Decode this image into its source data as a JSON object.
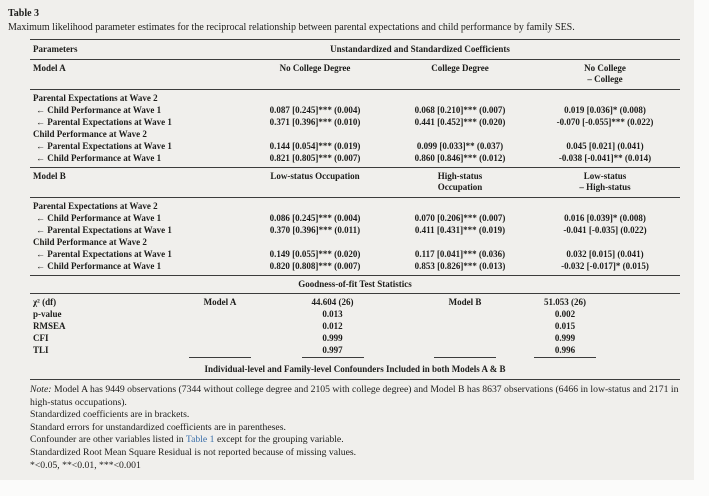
{
  "caption": {
    "label": "Table 3",
    "text": "Maximum likelihood parameter estimates for the reciprocal relationship between parental expectations and child performance by family SES."
  },
  "header": {
    "parameters": "Parameters",
    "coefficients": "Unstandardized and Standardized Coefficients"
  },
  "model_a": {
    "label": "Model A",
    "columns": [
      "No College Degree",
      "College Degree",
      "No College\n– College"
    ],
    "sections": [
      {
        "title": "Parental Expectations at Wave 2",
        "rows": [
          {
            "label": "← Child Performance at Wave 1",
            "values": [
              "0.087 [0.245]*** (0.004)",
              "0.068 [0.210]*** (0.007)",
              "0.019 [0.036]* (0.008)"
            ]
          },
          {
            "label": "← Parental Expectations at Wave 1",
            "values": [
              "0.371 [0.396]*** (0.010)",
              "0.441 [0.452]*** (0.020)",
              "-0.070 [-0.055]*** (0.022)"
            ]
          }
        ]
      },
      {
        "title": "Child Performance at Wave 2",
        "rows": [
          {
            "label": "← Parental Expectations at Wave 1",
            "values": [
              "0.144 [0.054]*** (0.019)",
              "0.099 [0.033]** (0.037)",
              "0.045 [0.021] (0.041)"
            ]
          },
          {
            "label": "← Child Performance at Wave 1",
            "values": [
              "0.821 [0.805]*** (0.007)",
              "0.860 [0.846]*** (0.012)",
              "-0.038 [-0.041]** (0.014)"
            ]
          }
        ]
      }
    ]
  },
  "model_b": {
    "label": "Model B",
    "columns": [
      "Low-status Occupation",
      "High-status\nOccupation",
      "Low-status\n– High-status"
    ],
    "sections": [
      {
        "title": "Parental Expectations at Wave 2",
        "rows": [
          {
            "label": "← Child Performance at Wave 1",
            "values": [
              "0.086 [0.245]*** (0.004)",
              "0.070 [0.206]*** (0.007)",
              "0.016 [0.039]* (0.008)"
            ]
          },
          {
            "label": "← Parental Expectations at Wave 1",
            "values": [
              "0.370 [0.396]*** (0.011)",
              "0.411 [0.431]*** (0.019)",
              "-0.041 [-0.035] (0.022)"
            ]
          }
        ]
      },
      {
        "title": "Child Performance at Wave 2",
        "rows": [
          {
            "label": "← Parental Expectations at Wave 1",
            "values": [
              "0.149 [0.055]*** (0.020)",
              "0.117 [0.041]*** (0.036)",
              "0.032 [0.015] (0.041)"
            ]
          },
          {
            "label": "← Child Performance at Wave 1",
            "values": [
              "0.820 [0.808]*** (0.007)",
              "0.853 [0.826]*** (0.013)",
              "-0.032 [-0.017]* (0.015)"
            ]
          }
        ]
      }
    ]
  },
  "gof": {
    "title": "Goodness-of-fit Test Statistics",
    "model_a_label": "Model A",
    "model_b_label": "Model B",
    "rows": [
      {
        "label": "χ² (df)",
        "a": "44.604 (26)",
        "b": "51.053 (26)"
      },
      {
        "label": "p-value",
        "a": "0.013",
        "b": "0.002"
      },
      {
        "label": "RMSEA",
        "a": "0.012",
        "b": "0.015"
      },
      {
        "label": "CFI",
        "a": "0.999",
        "b": "0.999"
      },
      {
        "label": "TLI",
        "a": "0.997",
        "b": "0.996"
      }
    ]
  },
  "confounders_row": "Individual-level and Family-level Confounders Included in both Models A & B",
  "notes": {
    "note_label": "Note:",
    "note1": " Model A has 9449 observations (7344 without college degree and 2105 with college degree) and Model B has 8637 observations (6466 in low-status and 2171 in high-status occupations).",
    "note2": "Standardized coefficients are in brackets.",
    "note3": "Standard errors for unstandardized coefficients are in parentheses.",
    "note4_prefix": "Confounder are other variables listed in ",
    "note4_link": "Table 1",
    "note4_suffix": " except for the grouping variable.",
    "note5": "Standardized Root Mean Square Residual is not reported because of missing values.",
    "note6": "*<0.05, **<0.01, ***<0.001"
  }
}
